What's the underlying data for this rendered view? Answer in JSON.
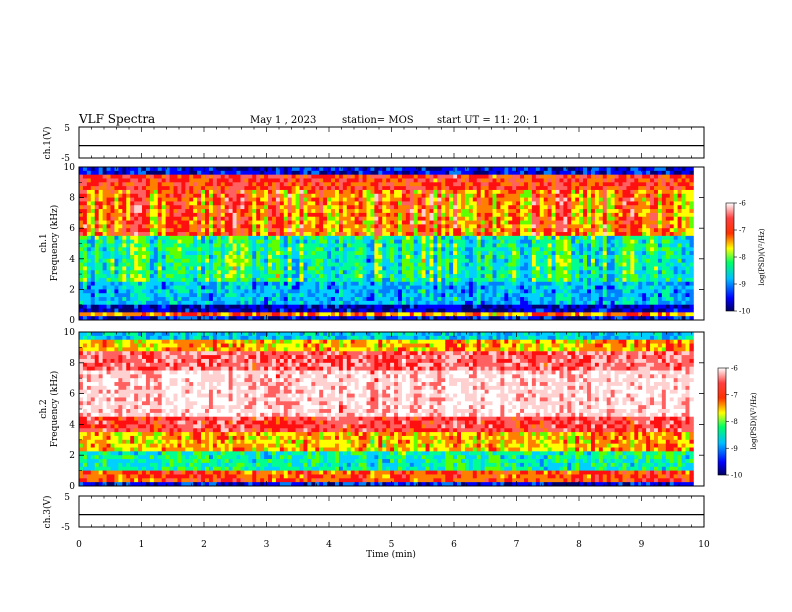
{
  "header": {
    "title": "VLF Spectra",
    "date": "May 1 , 2023",
    "station": "station= MOS",
    "start": "start UT = 11: 20: 1"
  },
  "chart_data": [
    {
      "type": "line",
      "panel": "ch1-waveform",
      "ylabel": "ch.1(V)",
      "ylim": [
        -5,
        5
      ],
      "yticks": [
        "5",
        "-5"
      ],
      "x": [
        0,
        10
      ],
      "values": [
        -1,
        -1
      ],
      "xlim": [
        0,
        10
      ]
    },
    {
      "type": "heatmap",
      "panel": "ch1-spectrogram",
      "ylabel": "ch.1\nFrequency (kHz)",
      "ylim": [
        0,
        10
      ],
      "yticks": [
        "0",
        "2",
        "4",
        "6",
        "8",
        "10"
      ],
      "xlim": [
        0,
        9.83
      ],
      "colorbar": {
        "label": "log(PSD)(V²/Hz)",
        "range": [
          -10,
          -6
        ],
        "ticks": [
          "-6",
          "-7",
          "-8",
          "-9",
          "-10"
        ]
      }
    },
    {
      "type": "heatmap",
      "panel": "ch2-spectrogram",
      "ylabel": "ch.2\nFrequency (kHz)",
      "ylim": [
        0,
        10
      ],
      "yticks": [
        "0",
        "2",
        "4",
        "6",
        "8",
        "10"
      ],
      "xlim": [
        0,
        9.83
      ],
      "colorbar": {
        "label": "log(PSD)(V²/Hz)",
        "range": [
          -10,
          -6
        ],
        "ticks": [
          "-6",
          "-7",
          "-8",
          "-9",
          "-10"
        ]
      }
    },
    {
      "type": "line",
      "panel": "ch3-waveform",
      "ylabel": "ch.3(V)",
      "ylim": [
        -5,
        5
      ],
      "yticks": [
        "5",
        "-5"
      ],
      "x": [
        0,
        10
      ],
      "values": [
        -1,
        -1
      ],
      "xlim": [
        0,
        10
      ]
    }
  ],
  "xaxis": {
    "label": "Time (min)",
    "range": [
      0,
      10
    ],
    "ticks": [
      "0",
      "1",
      "2",
      "3",
      "4",
      "5",
      "6",
      "7",
      "8",
      "9",
      "10"
    ]
  },
  "colors": {
    "scale": [
      "#000080",
      "#0000ff",
      "#00bfff",
      "#00ff80",
      "#ffff00",
      "#ff0000",
      "#ffffff"
    ]
  }
}
